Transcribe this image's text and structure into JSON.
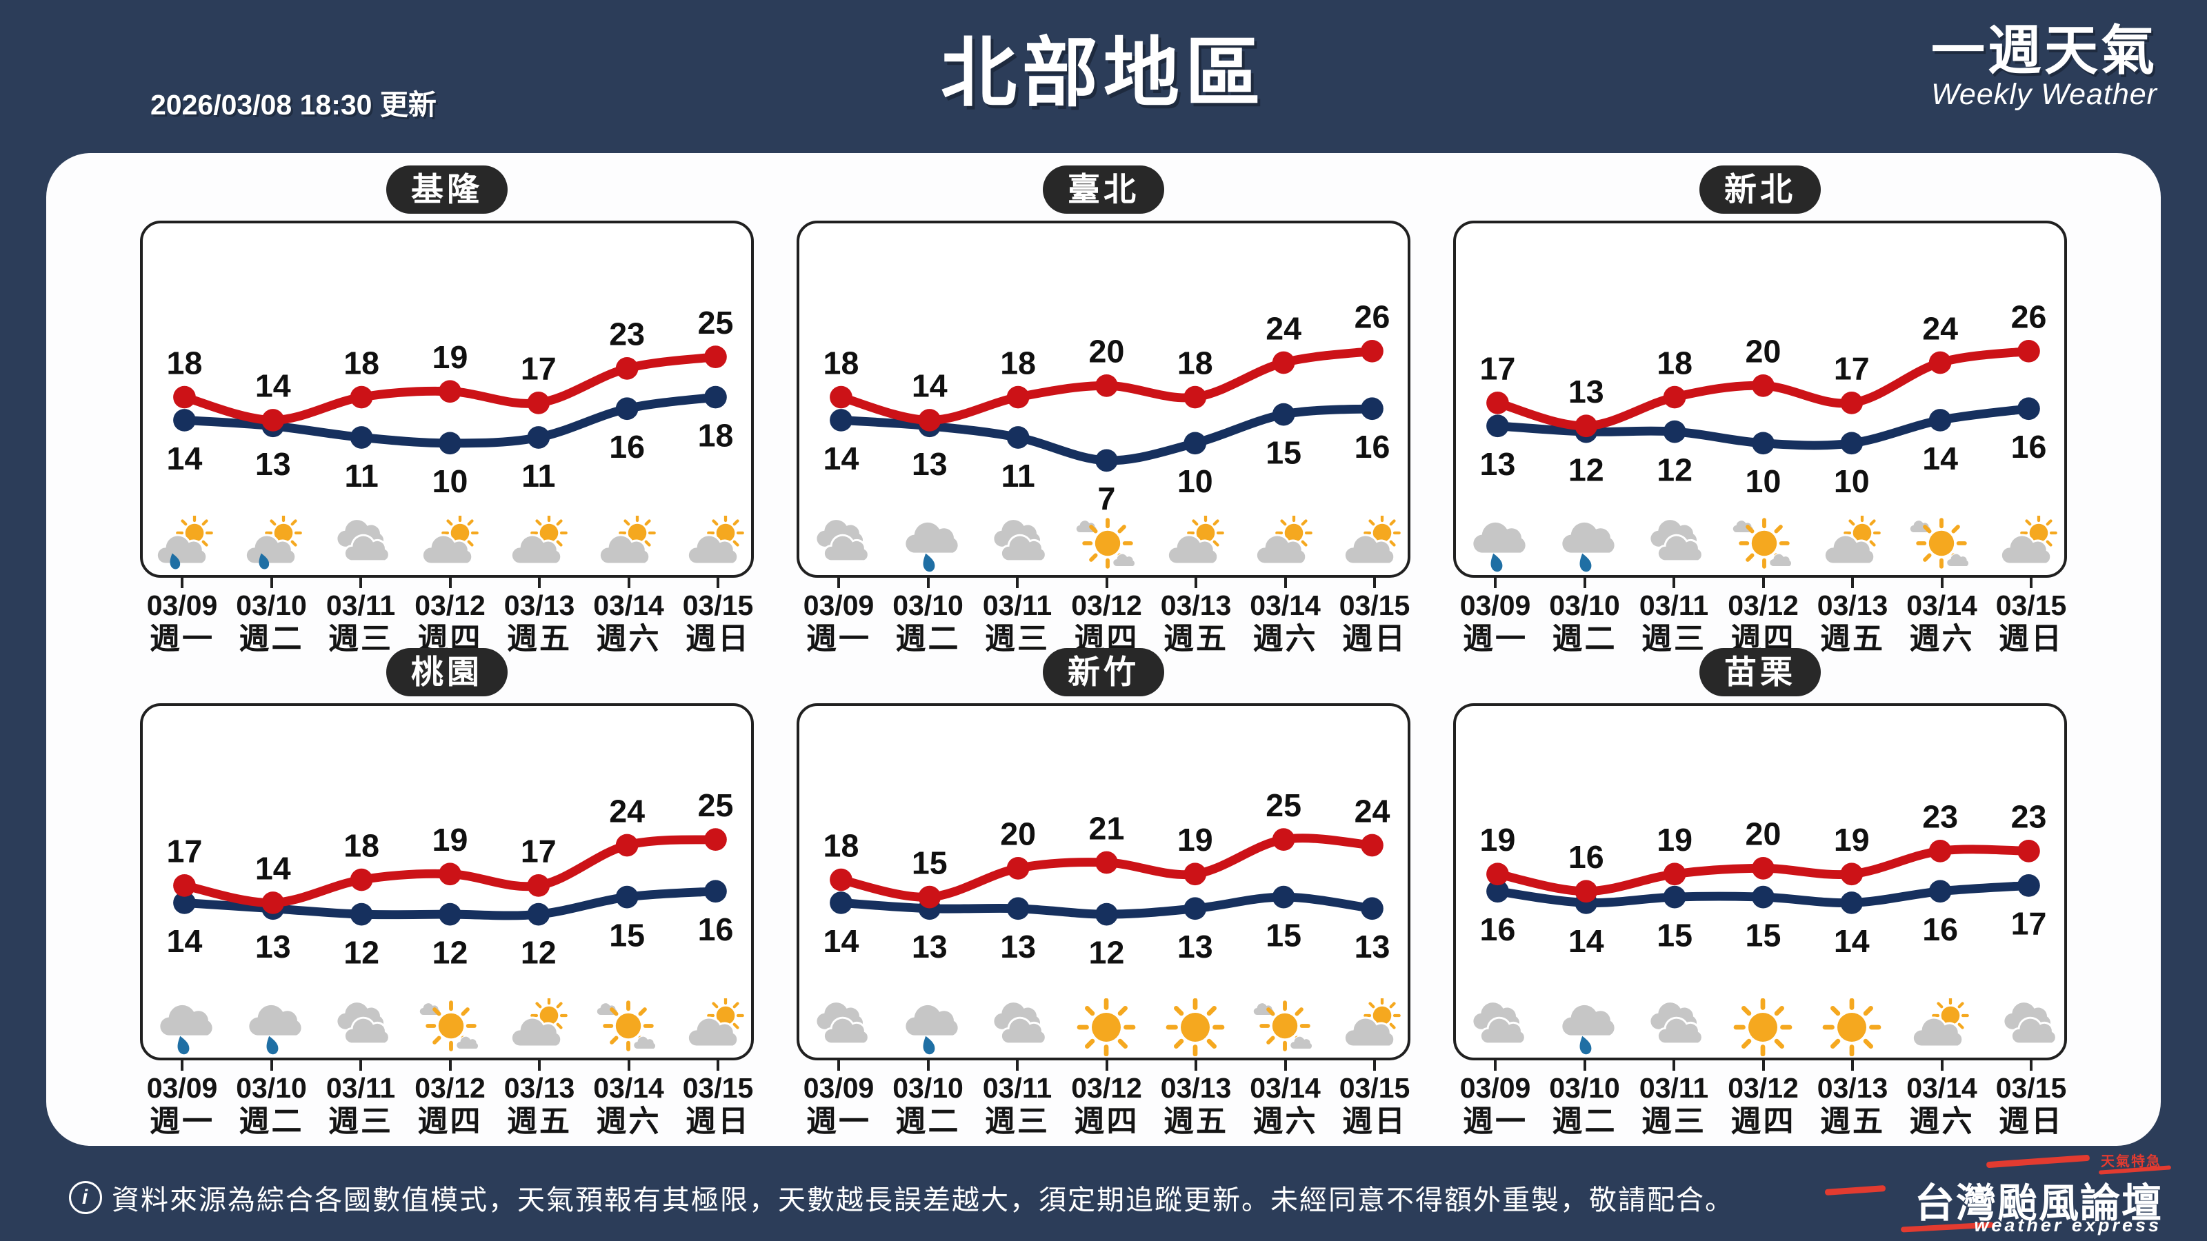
{
  "header": {
    "updated": "2026/03/08 18:30 更新",
    "title": "北部地區",
    "subtitle_zh": "一週天氣",
    "subtitle_en": "Weekly Weather"
  },
  "footer": {
    "info_symbol": "i",
    "notice": "資料來源為綜合各國數值模式，天氣預報有其極限，天數越長誤差越大，須定期追蹤更新。未經同意不得額外重製，敬請配合。",
    "logo": {
      "name_zh": "台灣颱風論壇",
      "name_en": "weather express",
      "tagline": "天氣特急"
    }
  },
  "days": [
    {
      "date": "03/09",
      "weekday": "週一"
    },
    {
      "date": "03/10",
      "weekday": "週二"
    },
    {
      "date": "03/11",
      "weekday": "週三"
    },
    {
      "date": "03/12",
      "weekday": "週四"
    },
    {
      "date": "03/13",
      "weekday": "週五"
    },
    {
      "date": "03/14",
      "weekday": "週六"
    },
    {
      "date": "03/15",
      "weekday": "週日"
    }
  ],
  "colors": {
    "background": "#2C3D59",
    "panel": "#FDFDFE",
    "pill": "#282828",
    "high": "#CC1217",
    "low": "#16305E",
    "value_label": "#101010",
    "cloud": "#C6C6C6",
    "sun": "#F5A81F",
    "drop": "#1F6FA4",
    "accent": "#E33B30"
  },
  "chart_data": [
    {
      "type": "line",
      "region": "基隆",
      "x": [
        "03/09",
        "03/10",
        "03/11",
        "03/12",
        "03/13",
        "03/14",
        "03/15"
      ],
      "series": [
        {
          "name": "high",
          "values": [
            18,
            14,
            18,
            19,
            17,
            23,
            25
          ]
        },
        {
          "name": "low",
          "values": [
            14,
            13,
            11,
            10,
            11,
            16,
            18
          ]
        }
      ],
      "icons": [
        "partly-sunny-rain",
        "partly-sunny-rain",
        "cloudy",
        "partly-sunny",
        "partly-sunny",
        "partly-sunny",
        "partly-sunny"
      ],
      "ylim": [
        5,
        30
      ],
      "grid": false,
      "legend": "none"
    },
    {
      "type": "line",
      "region": "臺北",
      "x": [
        "03/09",
        "03/10",
        "03/11",
        "03/12",
        "03/13",
        "03/14",
        "03/15"
      ],
      "series": [
        {
          "name": "high",
          "values": [
            18,
            14,
            18,
            20,
            18,
            24,
            26
          ]
        },
        {
          "name": "low",
          "values": [
            14,
            13,
            11,
            7,
            10,
            15,
            16
          ]
        }
      ],
      "icons": [
        "cloudy",
        "rain",
        "cloudy",
        "mostly-sunny",
        "partly-sunny",
        "partly-sunny",
        "partly-sunny"
      ],
      "ylim": [
        5,
        30
      ],
      "grid": false,
      "legend": "none"
    },
    {
      "type": "line",
      "region": "新北",
      "x": [
        "03/09",
        "03/10",
        "03/11",
        "03/12",
        "03/13",
        "03/14",
        "03/15"
      ],
      "series": [
        {
          "name": "high",
          "values": [
            17,
            13,
            18,
            20,
            17,
            24,
            26
          ]
        },
        {
          "name": "low",
          "values": [
            13,
            12,
            12,
            10,
            10,
            14,
            16
          ]
        }
      ],
      "icons": [
        "rain",
        "rain",
        "cloudy",
        "mostly-sunny",
        "partly-sunny",
        "mostly-sunny",
        "partly-sunny"
      ],
      "ylim": [
        5,
        30
      ],
      "grid": false,
      "legend": "none"
    },
    {
      "type": "line",
      "region": "桃園",
      "x": [
        "03/09",
        "03/10",
        "03/11",
        "03/12",
        "03/13",
        "03/14",
        "03/15"
      ],
      "series": [
        {
          "name": "high",
          "values": [
            17,
            14,
            18,
            19,
            17,
            24,
            25
          ]
        },
        {
          "name": "low",
          "values": [
            14,
            13,
            12,
            12,
            12,
            15,
            16
          ]
        }
      ],
      "icons": [
        "rain",
        "rain",
        "cloudy",
        "mostly-sunny",
        "partly-sunny",
        "mostly-sunny",
        "partly-sunny"
      ],
      "ylim": [
        5,
        30
      ],
      "grid": false,
      "legend": "none"
    },
    {
      "type": "line",
      "region": "新竹",
      "x": [
        "03/09",
        "03/10",
        "03/11",
        "03/12",
        "03/13",
        "03/14",
        "03/15"
      ],
      "series": [
        {
          "name": "high",
          "values": [
            18,
            15,
            20,
            21,
            19,
            25,
            24
          ]
        },
        {
          "name": "low",
          "values": [
            14,
            13,
            13,
            12,
            13,
            15,
            13
          ]
        }
      ],
      "icons": [
        "cloudy",
        "rain",
        "cloudy",
        "sunny",
        "sunny",
        "mostly-sunny",
        "partly-sunny"
      ],
      "ylim": [
        5,
        30
      ],
      "grid": false,
      "legend": "none"
    },
    {
      "type": "line",
      "region": "苗栗",
      "x": [
        "03/09",
        "03/10",
        "03/11",
        "03/12",
        "03/13",
        "03/14",
        "03/15"
      ],
      "series": [
        {
          "name": "high",
          "values": [
            19,
            16,
            19,
            20,
            19,
            23,
            23
          ]
        },
        {
          "name": "low",
          "values": [
            16,
            14,
            15,
            15,
            14,
            16,
            17
          ]
        }
      ],
      "icons": [
        "cloudy",
        "rain",
        "cloudy",
        "sunny",
        "sunny",
        "partly-sunny",
        "cloudy"
      ],
      "ylim": [
        5,
        30
      ],
      "grid": false,
      "legend": "none"
    }
  ]
}
